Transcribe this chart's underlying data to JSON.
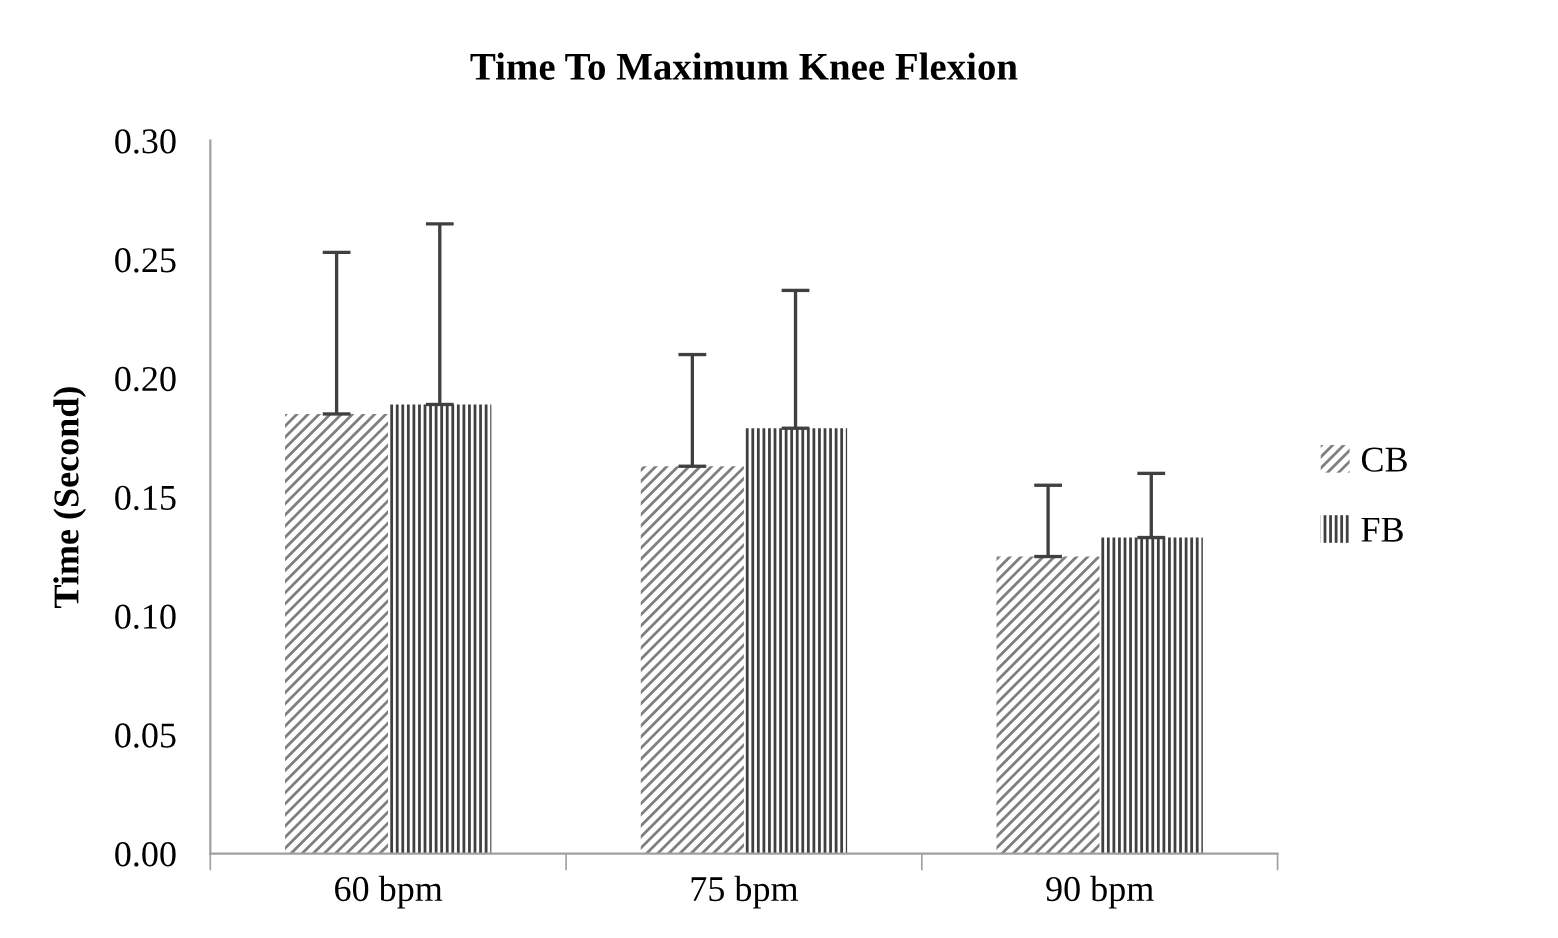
{
  "chart_data": {
    "type": "bar",
    "title": "Time To Maximum Knee Flexion",
    "ylabel": "Time (Second)",
    "categories": [
      "60 bpm",
      "75 bpm",
      "90 bpm"
    ],
    "series": [
      {
        "name": "CB",
        "color": "#7f7f7f",
        "values": [
          0.185,
          0.163,
          0.125
        ],
        "errors": [
          [
            0.185,
            0.253
          ],
          [
            0.163,
            0.21
          ],
          [
            0.125,
            0.155
          ]
        ]
      },
      {
        "name": "FB",
        "color": "#404040",
        "values": [
          0.189,
          0.179,
          0.133
        ],
        "errors": [
          [
            0.189,
            0.265
          ],
          [
            0.179,
            0.237
          ],
          [
            0.133,
            0.16
          ]
        ]
      }
    ],
    "ylim": [
      0,
      0.3
    ],
    "yticks": [
      {
        "value": 0,
        "label": "0.00"
      },
      {
        "value": 0.05,
        "label": "0.05"
      },
      {
        "value": 0.1,
        "label": "0.10"
      },
      {
        "value": 0.15,
        "label": "0.15"
      },
      {
        "value": 0.2,
        "label": "0.20"
      },
      {
        "value": 0.25,
        "label": "0.25"
      },
      {
        "value": 0.3,
        "label": "0.30"
      }
    ],
    "grid": false,
    "legend": "right"
  }
}
